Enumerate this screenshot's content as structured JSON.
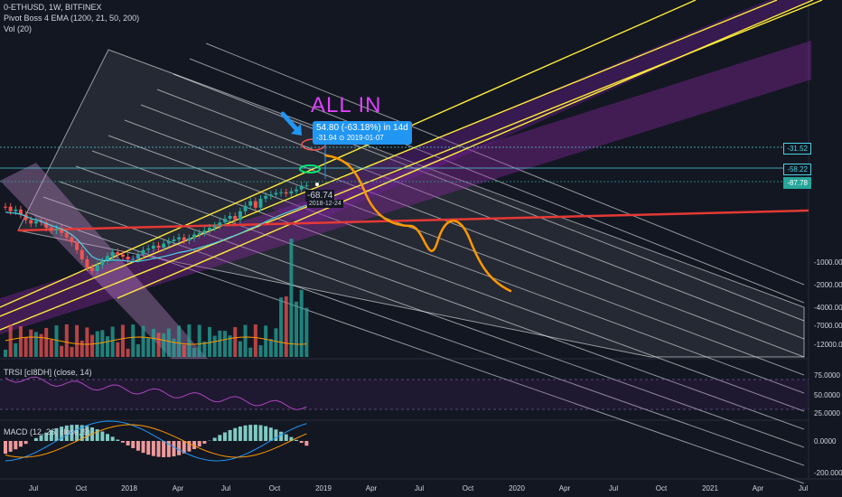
{
  "header": {
    "symbol_line": "0-ETHUSD, 1W, BITFINEX",
    "indicator_1": "Pivot Boss 4 EMA (1200, 21, 50, 200)",
    "indicator_2": "Vol (20)"
  },
  "annotation": {
    "text": "ALL IN",
    "color": "#e040fb"
  },
  "callout": {
    "line1": "54.80 (-63.18%) in 14d",
    "line2": "-31.94 ⊙ 2019-01-07"
  },
  "point_label": {
    "value": "-68.74",
    "date": "2018-12-24"
  },
  "price_levels": [
    {
      "label": "-31.52",
      "color": "#4dd0e1"
    },
    {
      "label": "-58.22",
      "color": "#4dd0e1"
    },
    {
      "label": "-87.78",
      "color": "#26a69a"
    }
  ],
  "y_axis_main": [
    "-1000.00",
    "-2000.00",
    "-4000.00",
    "-7000.00",
    "-12000.00"
  ],
  "rsi_pane": {
    "title": "TRSI [cI8DH] (close, 14)",
    "ticks": [
      "75.0000",
      "50.0000",
      "25.0000"
    ]
  },
  "macd_pane": {
    "title": "MACD (12, 26, close, 9)",
    "ticks": [
      "0.0000",
      "-200.0000"
    ]
  },
  "x_axis": [
    "Jul",
    "Oct",
    "2018",
    "Apr",
    "Jul",
    "Oct",
    "2019",
    "Apr",
    "Jul",
    "Oct",
    "2020",
    "Apr",
    "Jul",
    "Oct",
    "2021",
    "Apr",
    "Jul"
  ],
  "colors": {
    "background": "#131722",
    "up": "#26a69a",
    "down": "#ef5350",
    "channel": "#ffffff",
    "ema": "#4dd0e1",
    "fan_yellow": "#ffeb3b",
    "purple_band": "#9c27b0",
    "red_line": "#e53935",
    "projection": "#ff9800"
  },
  "chart_data": {
    "type": "candlestick",
    "symbol": "0-ETHUSD",
    "interval": "1W",
    "exchange": "BITFINEX",
    "x_tick_labels": [
      "Jul",
      "Oct",
      "2018",
      "Apr",
      "Jul",
      "Oct",
      "2019",
      "Apr",
      "Jul",
      "Oct",
      "2020",
      "Apr",
      "Jul",
      "Oct",
      "2021",
      "Apr",
      "Jul"
    ],
    "y_tick_labels": [
      "-1000.00",
      "-2000.00",
      "-4000.00",
      "-7000.00",
      "-12000.00"
    ],
    "y_scale": "log",
    "marked_levels": [
      -31.52,
      -58.22,
      -87.78
    ],
    "close_series": [
      -145,
      -170,
      -160,
      -190,
      -230,
      -260,
      -240,
      -250,
      -300,
      -330,
      -310,
      -360,
      -420,
      -500,
      -650,
      -900,
      -1200,
      -1350,
      -1100,
      -950,
      -800,
      -700,
      -760,
      -820,
      -900,
      -880,
      -760,
      -650,
      -620,
      -560,
      -600,
      -520,
      -480,
      -450,
      -420,
      -470,
      -430,
      -380,
      -360,
      -330,
      -300,
      -280,
      -250,
      -220,
      -200,
      -230,
      -170,
      -140,
      -120,
      -150,
      -110,
      -100,
      -95,
      -90,
      -88,
      -92,
      -85,
      -80,
      -70,
      -69
    ]
  }
}
